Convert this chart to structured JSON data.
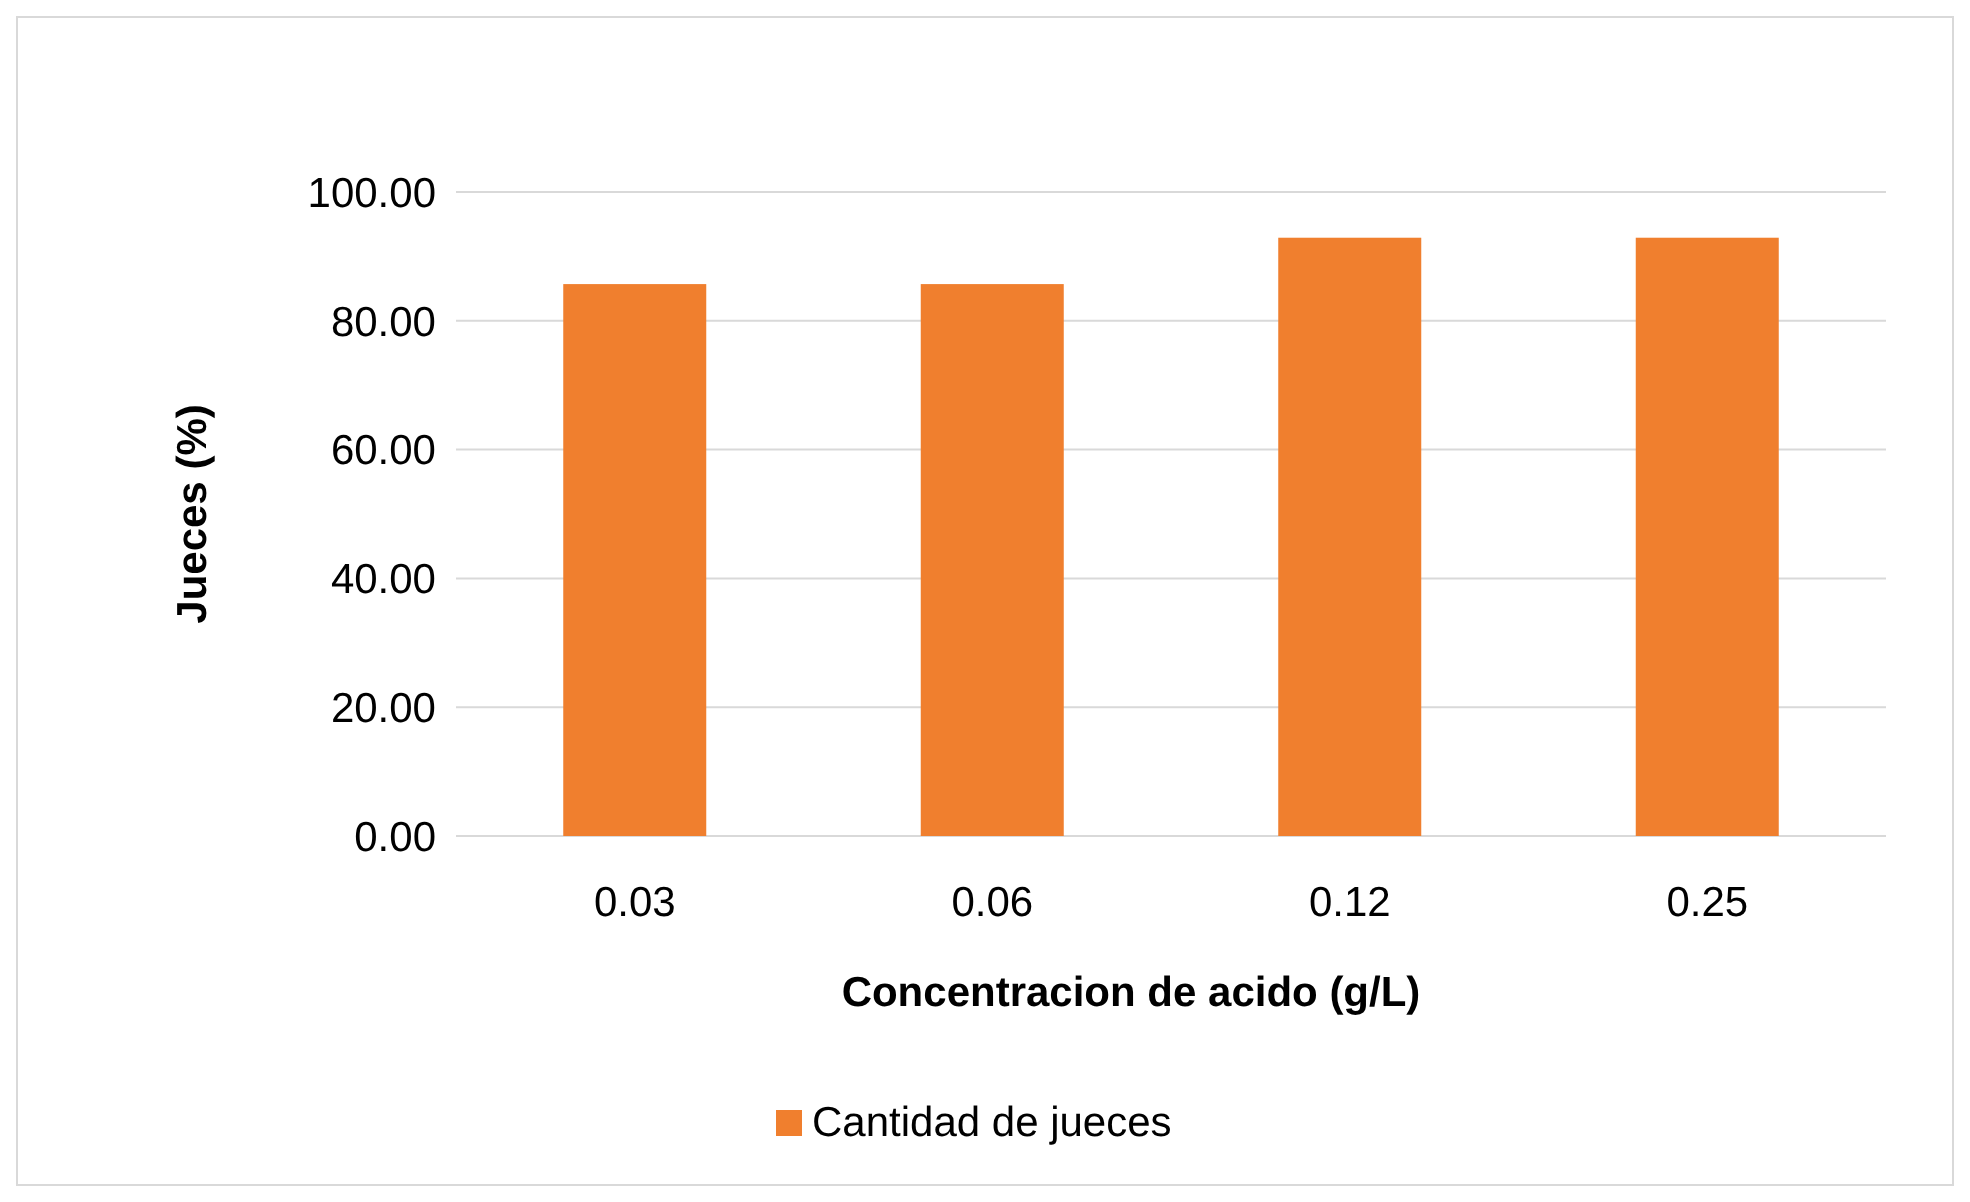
{
  "chart_data": {
    "type": "bar",
    "xlabel": "Concentracion de acido (g/L)",
    "ylabel": "Jueces (%)",
    "categories": [
      "0.03",
      "0.06",
      "0.12",
      "0.25"
    ],
    "series": [
      {
        "name": "Cantidad de jueces",
        "color": "#f07f2e",
        "values": [
          85.7,
          85.7,
          92.9,
          92.9
        ]
      }
    ],
    "ylim": [
      0,
      100
    ],
    "yticks": [
      {
        "value": 0,
        "label": "0.00"
      },
      {
        "value": 20,
        "label": "20.00"
      },
      {
        "value": 40,
        "label": "40.00"
      },
      {
        "value": 60,
        "label": "60.00"
      },
      {
        "value": 80,
        "label": "80.00"
      },
      {
        "value": 100,
        "label": "100.00"
      }
    ],
    "grid": "y",
    "legend": "bottom"
  }
}
